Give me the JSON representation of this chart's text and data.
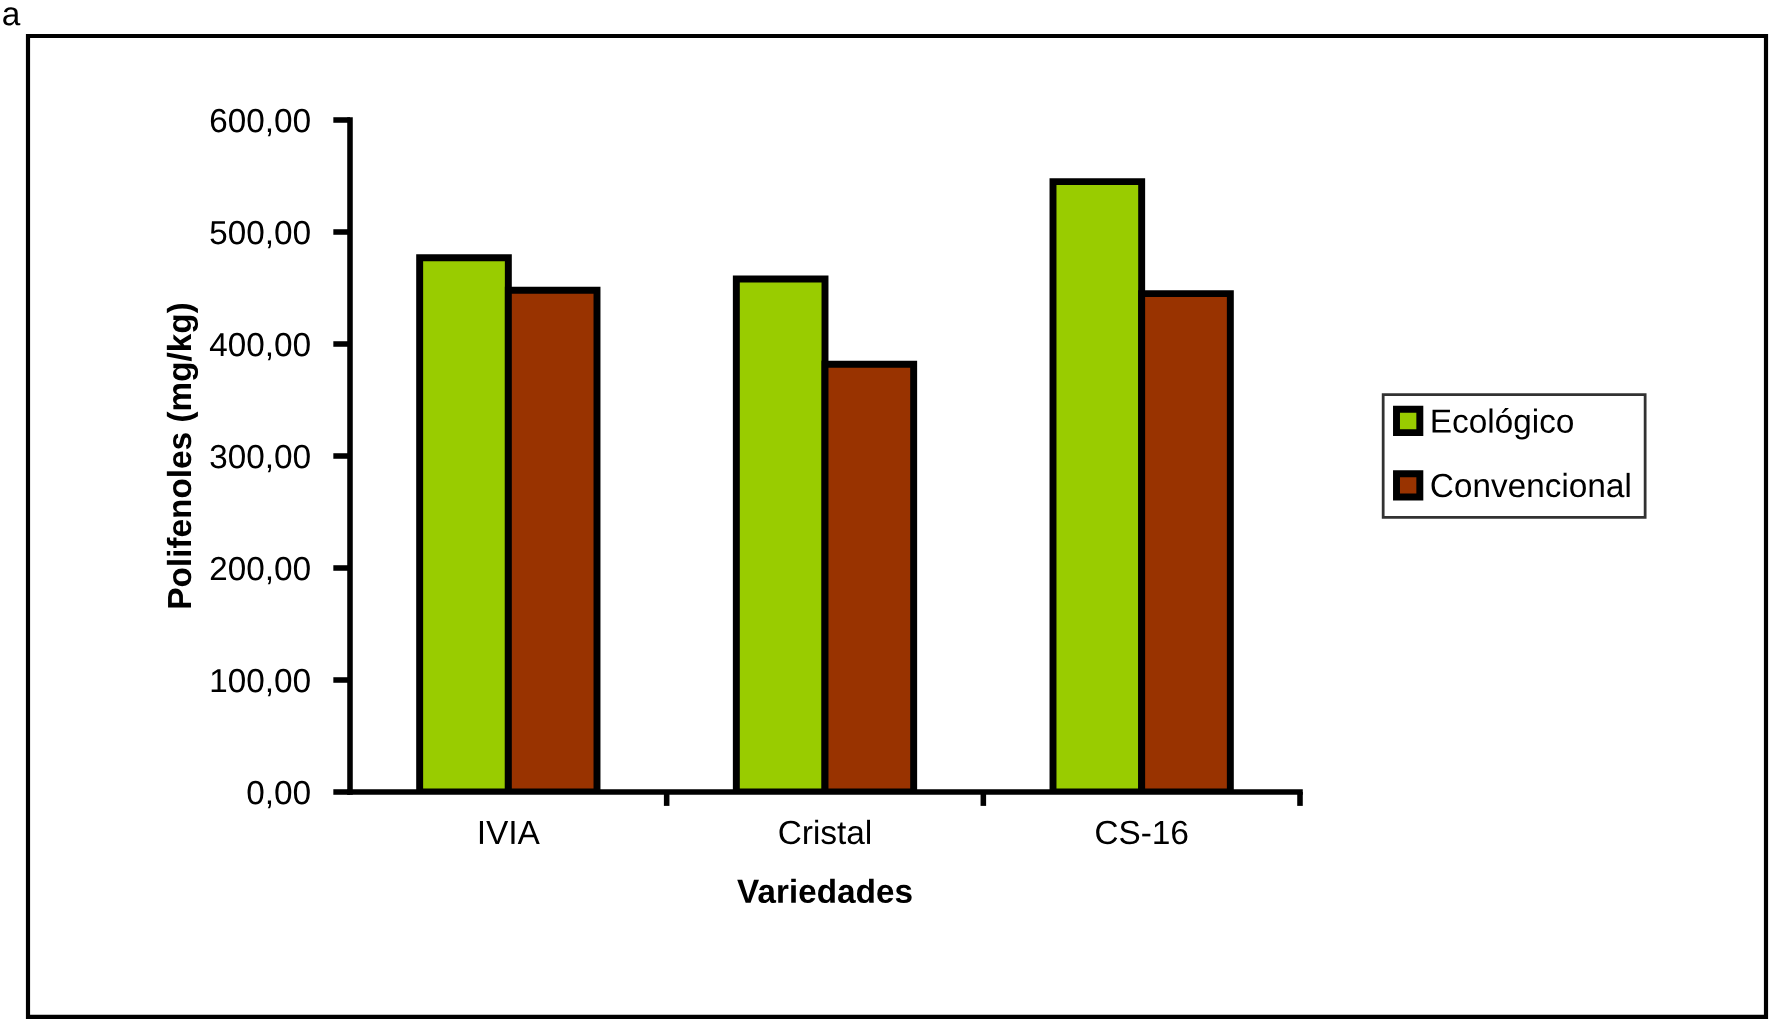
{
  "chart_data": {
    "type": "bar",
    "xlabel": "Variedades",
    "ylabel": "Polifenoles (mg/kg)",
    "annotations": [
      "a"
    ],
    "categories": [
      "IVIA",
      "Cristal",
      "CS-16"
    ],
    "series": [
      {
        "name": "Ecológico",
        "color": "#99cc00",
        "values": [
          477,
          458,
          545
        ]
      },
      {
        "name": "Convencional",
        "color": "#993300",
        "values": [
          448,
          382,
          445
        ]
      }
    ],
    "ylim": [
      0,
      600
    ],
    "yticks": [
      {
        "value": 0,
        "label": "0,00"
      },
      {
        "value": 100,
        "label": "100,00"
      },
      {
        "value": 200,
        "label": "200,00"
      },
      {
        "value": 300,
        "label": "300,00"
      },
      {
        "value": 400,
        "label": "400,00"
      },
      {
        "value": 500,
        "label": "500,00"
      },
      {
        "value": 600,
        "label": "600,00"
      }
    ],
    "grid": false,
    "legend": "right"
  }
}
